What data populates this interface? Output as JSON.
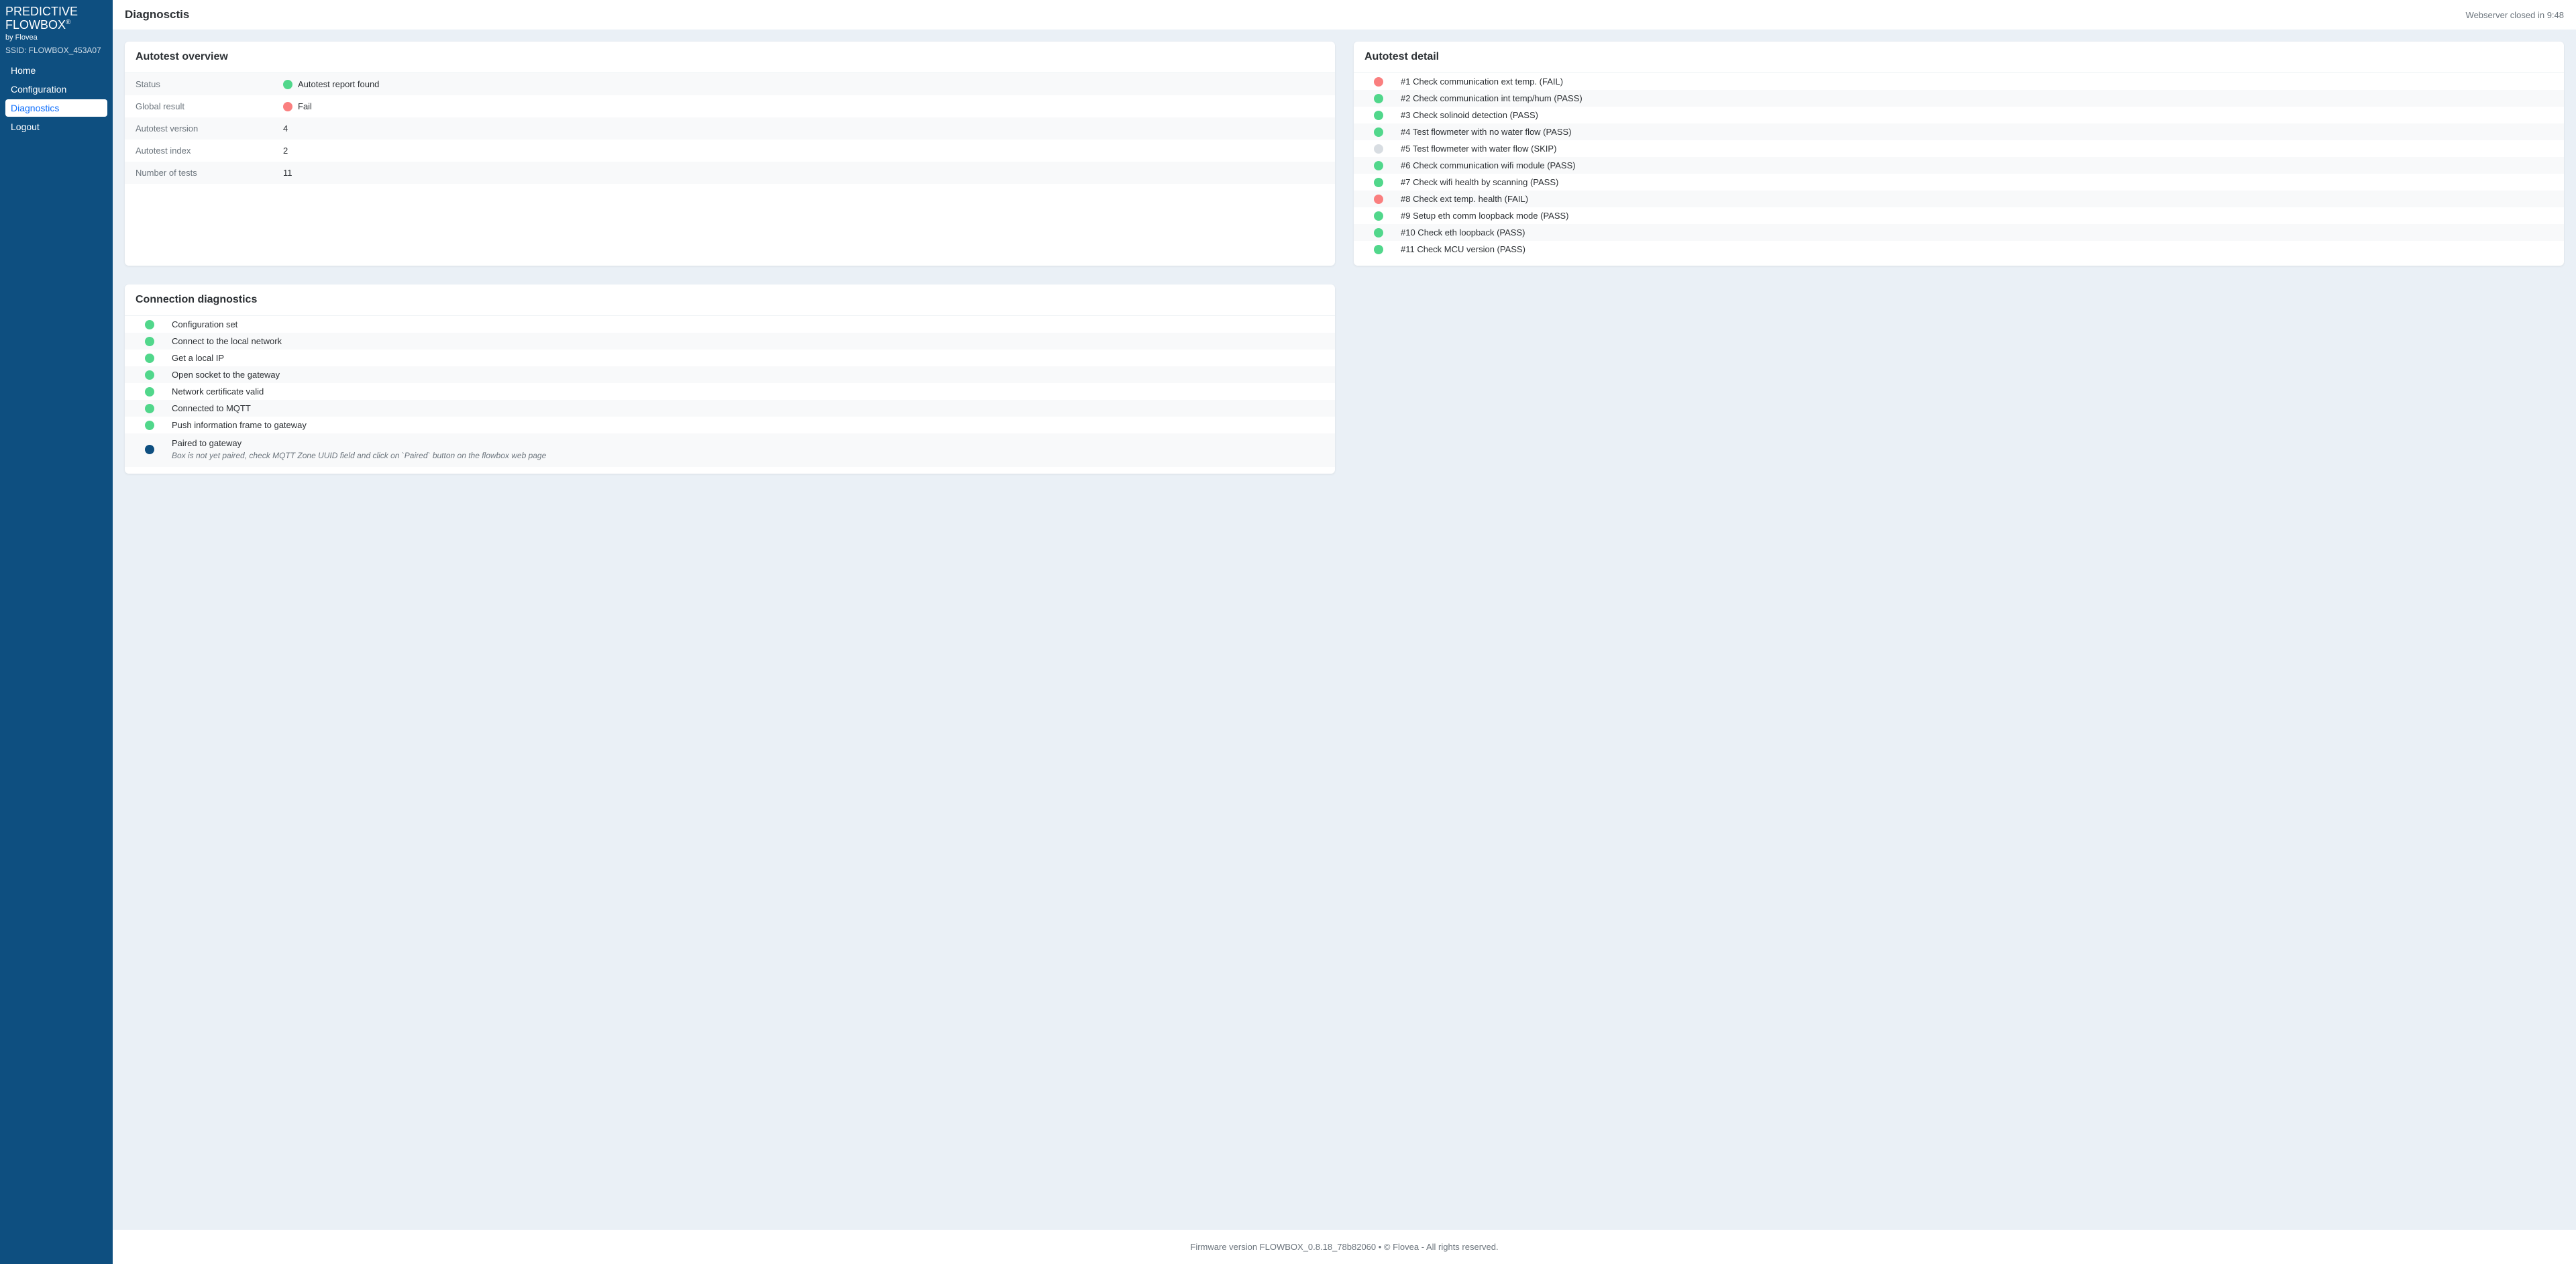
{
  "colors": {
    "sidebar_bg": "#0e4f80",
    "content_bg": "#eaf0f6",
    "pass": "#51d78b",
    "fail": "#fa7f7f",
    "skip": "#d8dde2",
    "info": "#0e4f80",
    "nav_active_text": "#0d6efd",
    "text_muted": "#6c757d"
  },
  "brand": {
    "line1": "PREDICTIVE",
    "line2": "FLOWBOX",
    "sup": "®",
    "by": "by Flovea",
    "ssid_label": "SSID: FLOWBOX_453A07"
  },
  "nav": {
    "items": [
      {
        "label": "Home",
        "key": "home",
        "active": false
      },
      {
        "label": "Configuration",
        "key": "configuration",
        "active": false
      },
      {
        "label": "Diagnostics",
        "key": "diagnostics",
        "active": true
      },
      {
        "label": "Logout",
        "key": "logout",
        "active": false
      }
    ]
  },
  "header": {
    "title": "Diagnosctis",
    "status": "Webserver closed in 9:48"
  },
  "overview": {
    "title": "Autotest overview",
    "rows": [
      {
        "label": "Status",
        "value": "Autotest report found",
        "dot": "pass"
      },
      {
        "label": "Global result",
        "value": "Fail",
        "dot": "fail"
      },
      {
        "label": "Autotest version",
        "value": "4",
        "dot": null
      },
      {
        "label": "Autotest index",
        "value": "2",
        "dot": null
      },
      {
        "label": "Number of tests",
        "value": "11",
        "dot": null
      }
    ]
  },
  "detail": {
    "title": "Autotest detail",
    "items": [
      {
        "text": "#1 Check communication ext temp. (FAIL)",
        "status": "fail"
      },
      {
        "text": "#2 Check communication int temp/hum (PASS)",
        "status": "pass"
      },
      {
        "text": "#3 Check solinoid detection (PASS)",
        "status": "pass"
      },
      {
        "text": "#4 Test flowmeter with no water flow (PASS)",
        "status": "pass"
      },
      {
        "text": "#5 Test flowmeter with water flow (SKIP)",
        "status": "skip"
      },
      {
        "text": "#6 Check communication wifi module (PASS)",
        "status": "pass"
      },
      {
        "text": "#7 Check wifi health by scanning (PASS)",
        "status": "pass"
      },
      {
        "text": "#8 Check ext temp. health (FAIL)",
        "status": "fail"
      },
      {
        "text": "#9 Setup eth comm loopback mode (PASS)",
        "status": "pass"
      },
      {
        "text": "#10 Check eth loopback (PASS)",
        "status": "pass"
      },
      {
        "text": "#11 Check MCU version (PASS)",
        "status": "pass"
      }
    ]
  },
  "connection": {
    "title": "Connection diagnostics",
    "items": [
      {
        "text": "Configuration set",
        "status": "pass"
      },
      {
        "text": "Connect to the local network",
        "status": "pass"
      },
      {
        "text": "Get a local IP",
        "status": "pass"
      },
      {
        "text": "Open socket to the gateway",
        "status": "pass"
      },
      {
        "text": "Network certificate valid",
        "status": "pass"
      },
      {
        "text": "Connected to MQTT",
        "status": "pass"
      },
      {
        "text": "Push information frame to gateway",
        "status": "pass"
      },
      {
        "text": "Paired to gateway",
        "status": "info",
        "sub": "Box is not yet paired, check MQTT Zone UUID field and click on `Paired` button on the flowbox web page"
      }
    ]
  },
  "footer": {
    "text": "Firmware version FLOWBOX_0.8.18_78b82060 • © Flovea - All rights reserved."
  }
}
